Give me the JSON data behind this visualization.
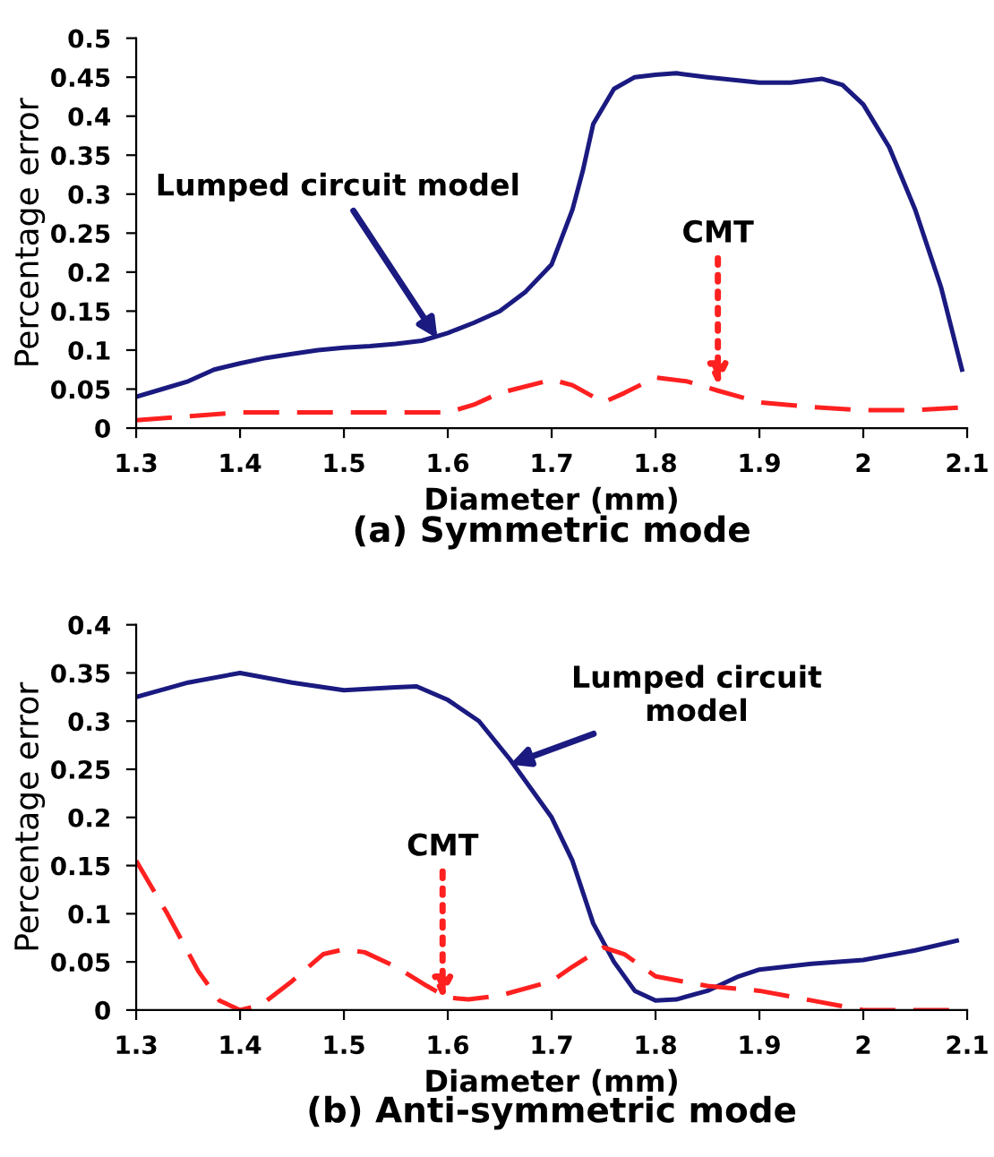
{
  "chart_data": [
    {
      "type": "line",
      "title": "(a) Symmetric mode",
      "xlabel": "Diameter (mm)",
      "ylabel": "Percentage error",
      "xlim": [
        1.3,
        2.1
      ],
      "xticks": [
        1.3,
        1.4,
        1.5,
        1.6,
        1.7,
        1.8,
        1.9,
        2,
        2.1
      ],
      "ylim": [
        0,
        0.5
      ],
      "yticks": [
        0,
        0.05,
        0.1,
        0.15,
        0.2,
        0.25,
        0.3,
        0.35,
        0.4,
        0.45,
        0.5
      ],
      "grid": false,
      "legend": false,
      "marker": "none",
      "series": [
        {
          "color": "#1a1a80",
          "line_style": "solid",
          "x": [
            1.3,
            1.325,
            1.35,
            1.375,
            1.4,
            1.425,
            1.45,
            1.475,
            1.5,
            1.525,
            1.55,
            1.575,
            1.6,
            1.625,
            1.65,
            1.675,
            1.7,
            1.72,
            1.73,
            1.74,
            1.76,
            1.78,
            1.8,
            1.82,
            1.85,
            1.9,
            1.93,
            1.96,
            1.98,
            2.0,
            2.025,
            2.05,
            2.075,
            2.095
          ],
          "values": [
            0.04,
            0.05,
            0.06,
            0.075,
            0.083,
            0.09,
            0.095,
            0.1,
            0.103,
            0.105,
            0.108,
            0.112,
            0.122,
            0.135,
            0.15,
            0.175,
            0.21,
            0.28,
            0.33,
            0.39,
            0.435,
            0.45,
            0.453,
            0.455,
            0.45,
            0.443,
            0.443,
            0.448,
            0.44,
            0.415,
            0.36,
            0.28,
            0.18,
            0.075
          ]
        },
        {
          "color": "#ff2020",
          "line_style": "dashed",
          "x": [
            1.3,
            1.4,
            1.5,
            1.6,
            1.625,
            1.65,
            1.7,
            1.72,
            1.75,
            1.77,
            1.8,
            1.83,
            1.86,
            1.9,
            1.95,
            2.0,
            2.05,
            2.1
          ],
          "values": [
            0.01,
            0.02,
            0.02,
            0.02,
            0.03,
            0.045,
            0.062,
            0.055,
            0.033,
            0.045,
            0.065,
            0.06,
            0.048,
            0.033,
            0.027,
            0.023,
            0.023,
            0.027
          ]
        }
      ],
      "annotations": [
        {
          "text": "Lumped circuit model",
          "x": 1.59,
          "y": 0.115
        },
        {
          "text": "CMT",
          "x": 1.86,
          "y": 0.055
        }
      ]
    },
    {
      "type": "line",
      "title": "(b) Anti-symmetric mode",
      "xlabel": "Diameter (mm)",
      "ylabel": "Percentage error",
      "xlim": [
        1.3,
        2.1
      ],
      "xticks": [
        1.3,
        1.4,
        1.5,
        1.6,
        1.7,
        1.8,
        1.9,
        2,
        2.1
      ],
      "ylim": [
        0,
        0.4
      ],
      "yticks": [
        0,
        0.05,
        0.1,
        0.15,
        0.2,
        0.25,
        0.3,
        0.35,
        0.4
      ],
      "grid": false,
      "legend": false,
      "marker": "none",
      "series": [
        {
          "color": "#1a1a80",
          "line_style": "solid",
          "x": [
            1.3,
            1.35,
            1.4,
            1.45,
            1.5,
            1.55,
            1.57,
            1.6,
            1.63,
            1.66,
            1.7,
            1.72,
            1.74,
            1.76,
            1.78,
            1.8,
            1.82,
            1.85,
            1.88,
            1.9,
            1.95,
            2.0,
            2.05,
            2.09
          ],
          "values": [
            0.325,
            0.34,
            0.35,
            0.34,
            0.332,
            0.335,
            0.336,
            0.322,
            0.3,
            0.26,
            0.2,
            0.155,
            0.09,
            0.05,
            0.02,
            0.01,
            0.011,
            0.02,
            0.035,
            0.042,
            0.048,
            0.052,
            0.062,
            0.072
          ]
        },
        {
          "color": "#ff2020",
          "line_style": "dashed",
          "x": [
            1.3,
            1.33,
            1.36,
            1.38,
            1.4,
            1.42,
            1.45,
            1.48,
            1.5,
            1.52,
            1.55,
            1.58,
            1.6,
            1.62,
            1.65,
            1.7,
            1.72,
            1.75,
            1.77,
            1.8,
            1.85,
            1.9,
            1.95,
            2.0,
            2.05,
            2.1
          ],
          "values": [
            0.155,
            0.1,
            0.04,
            0.01,
            0,
            0.005,
            0.03,
            0.058,
            0.063,
            0.06,
            0.045,
            0.025,
            0.013,
            0.011,
            0.015,
            0.03,
            0.045,
            0.065,
            0.058,
            0.035,
            0.025,
            0.02,
            0.01,
            0,
            0,
            0
          ]
        }
      ],
      "annotations": [
        {
          "text": "Lumped circuit\nmodel",
          "x": 1.66,
          "y": 0.255
        },
        {
          "text": "CMT",
          "x": 1.595,
          "y": 0.012
        }
      ]
    }
  ]
}
